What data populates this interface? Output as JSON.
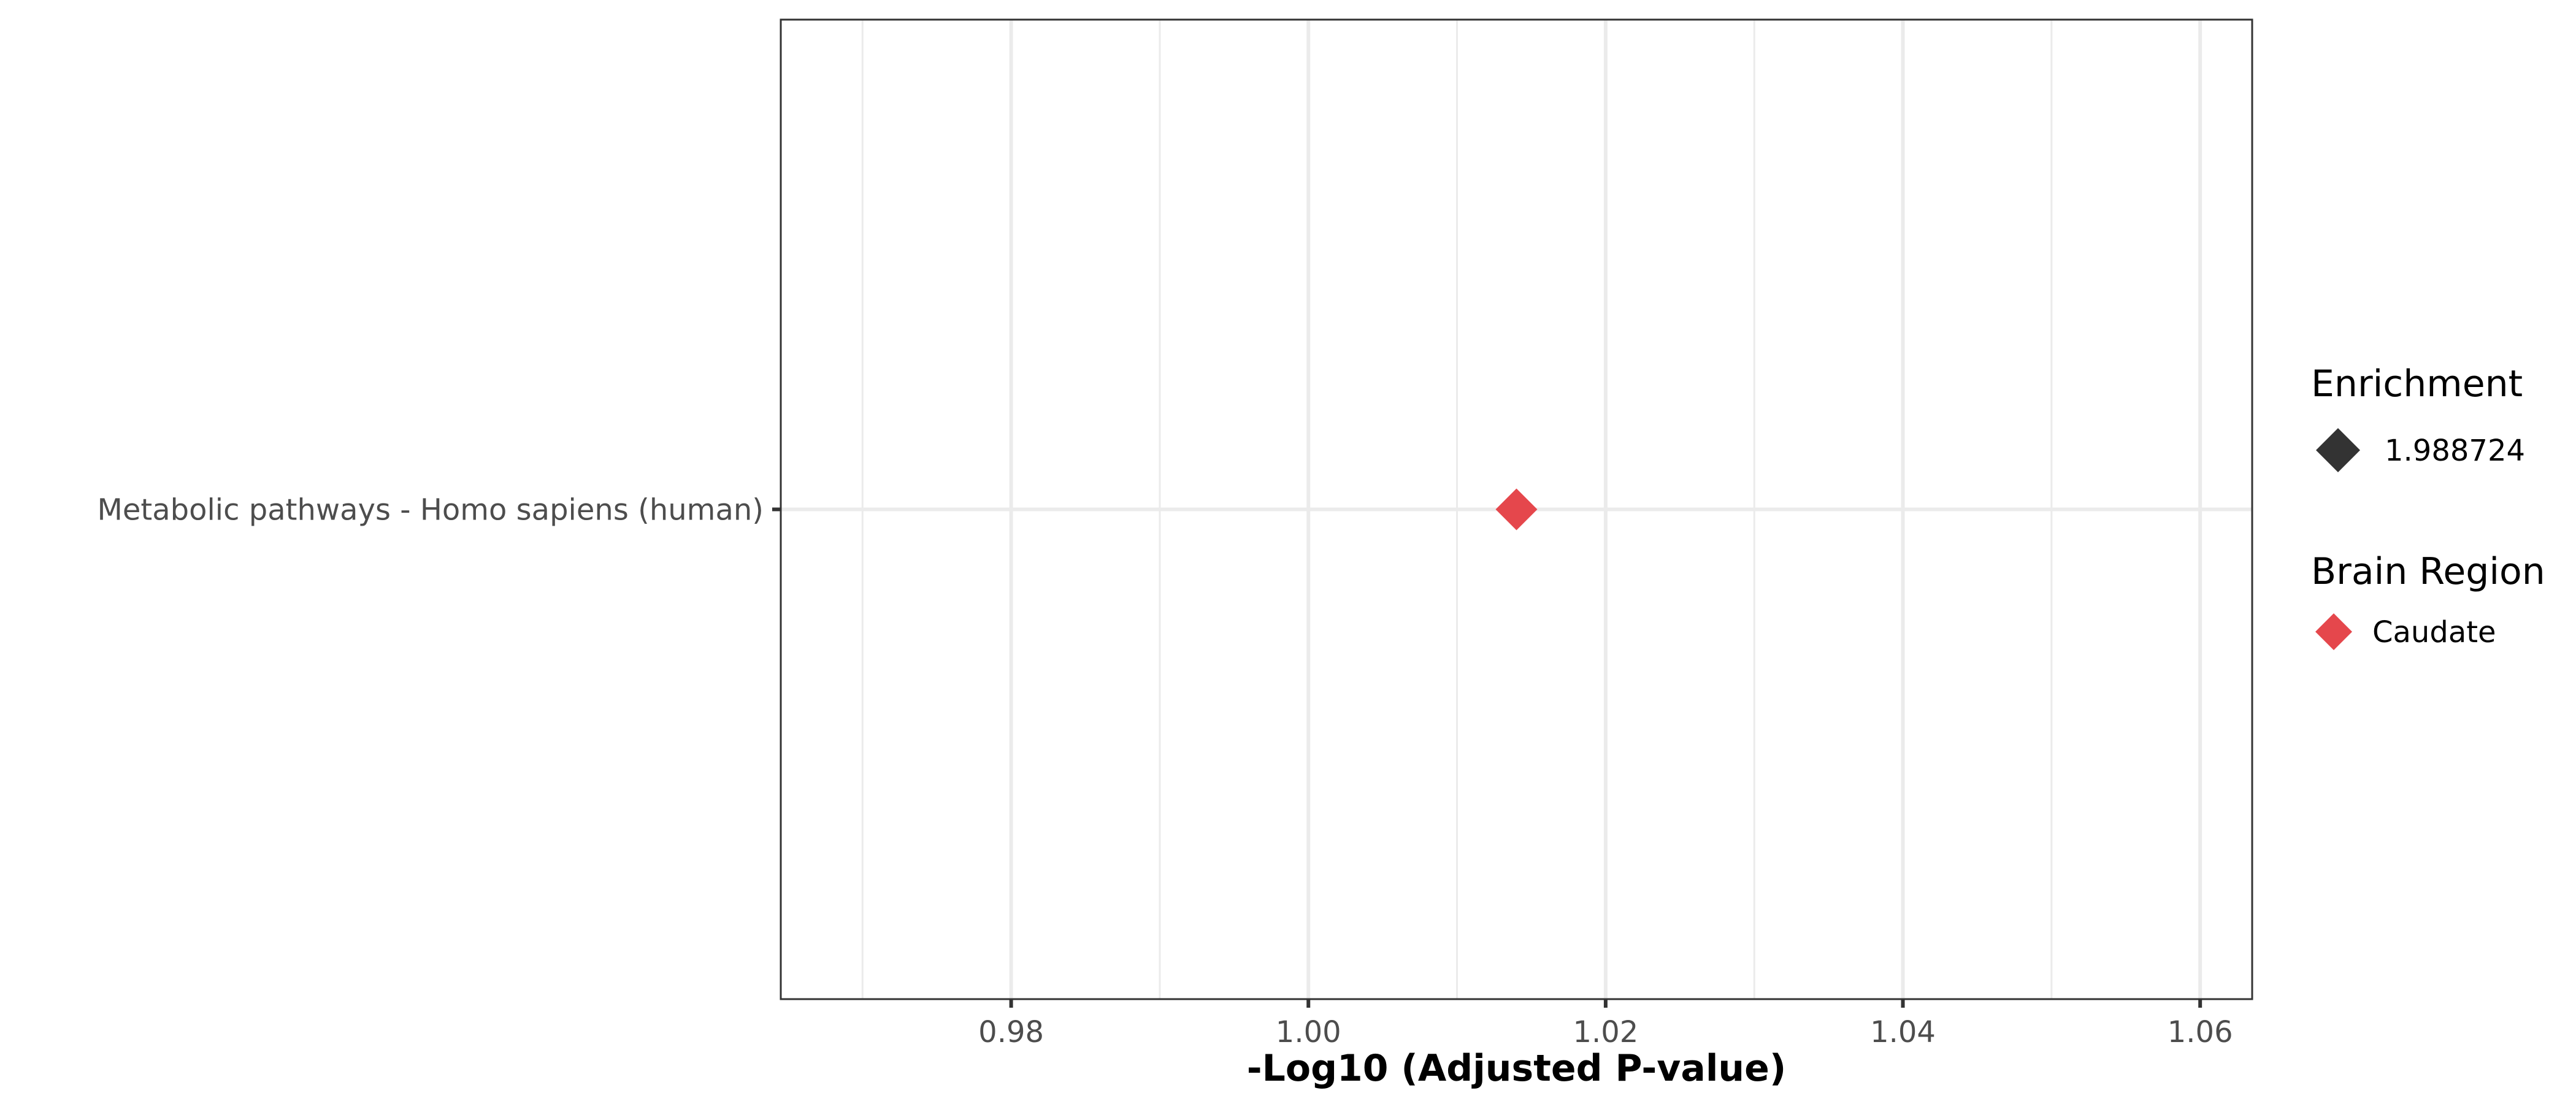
{
  "chart_data": {
    "type": "scatter",
    "title": "",
    "xlabel": "-Log10 (Adjusted P-value)",
    "ylabel": "",
    "xlim": [
      0.9645,
      1.0635
    ],
    "x_ticks": [
      0.98,
      1.0,
      1.02,
      1.04,
      1.06
    ],
    "x_tick_labels": [
      "0.98",
      "1.00",
      "1.02",
      "1.04",
      "1.06"
    ],
    "x_minor_ticks": [
      0.97,
      0.99,
      1.01,
      1.03,
      1.05
    ],
    "categories": [
      "Metabolic pathways - Homo sapiens (human)"
    ],
    "points": [
      {
        "category": "Metabolic pathways - Homo sapiens (human)",
        "x": 1.014,
        "brain_region": "Caudate",
        "enrichment": 1.988724
      }
    ],
    "grid": true,
    "legend_position": "right",
    "legends": [
      {
        "title": "Enrichment",
        "items": [
          {
            "label": "1.988724",
            "color": "#333333",
            "shape": "diamond-large"
          }
        ]
      },
      {
        "title": "Brain Region",
        "items": [
          {
            "label": "Caudate",
            "color": "#E5474C",
            "shape": "diamond"
          }
        ]
      }
    ],
    "colors": {
      "point": "#E5474C",
      "enrichment_key": "#333333",
      "grid": "#ebebeb",
      "panel_border": "#333333"
    }
  }
}
